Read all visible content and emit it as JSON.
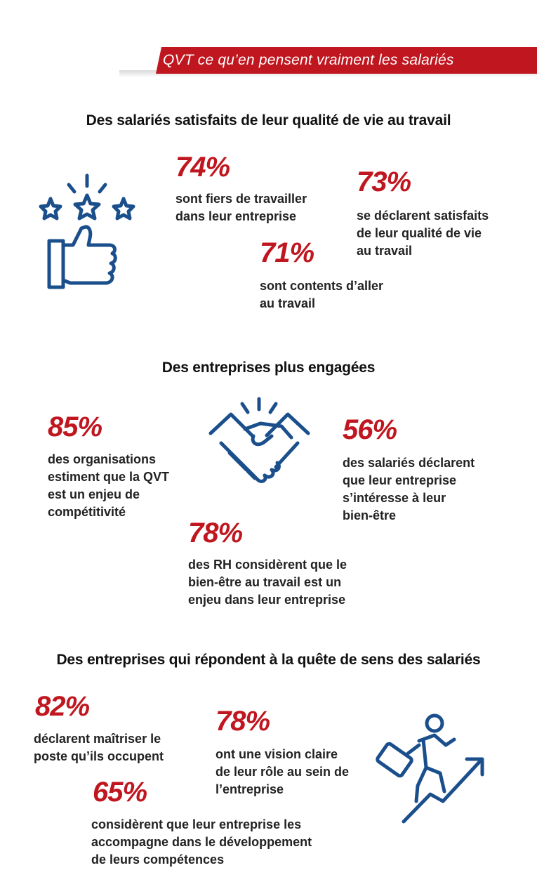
{
  "banner": {
    "title": "QVT ce qu’en pensent vraiment les salariés"
  },
  "colors": {
    "accent_red": "#c0161f",
    "icon_blue": "#1b4f8c"
  },
  "sections": [
    {
      "title": "Des salariés satisfaits de leur qualité de vie au travail",
      "icon": "thumbs-up-stars-icon",
      "stats": [
        {
          "value": "74%",
          "text": "sont fiers de travailler\ndans leur entreprise"
        },
        {
          "value": "73%",
          "text": "se déclarent satisfaits\nde leur qualité de vie\nau travail"
        },
        {
          "value": "71%",
          "text": "sont contents d’aller\nau travail"
        }
      ]
    },
    {
      "title": "Des entreprises plus engagées",
      "icon": "handshake-icon",
      "stats": [
        {
          "value": "85%",
          "text": "des organisations\nestiment que la QVT\nest un enjeu de\ncompétitivité"
        },
        {
          "value": "56%",
          "text": "des salariés déclarent\nque leur entreprise\ns’intéresse à leur\nbien-être"
        },
        {
          "value": "78%",
          "text": "des RH considèrent que le\nbien-être au travail est un\nenjeu dans leur entreprise"
        }
      ]
    },
    {
      "title": "Des entreprises qui répondent à la quête de sens des salariés",
      "icon": "climbing-man-arrow-icon",
      "stats": [
        {
          "value": "82%",
          "text": "déclarent maîtriser le\nposte qu’ils occupent"
        },
        {
          "value": "78%",
          "text": "ont une vision claire\nde leur rôle au sein de\nl’entreprise"
        },
        {
          "value": "65%",
          "text": "considèrent que leur entreprise les\naccompagne dans le développement\nde leurs compétences"
        }
      ]
    }
  ]
}
